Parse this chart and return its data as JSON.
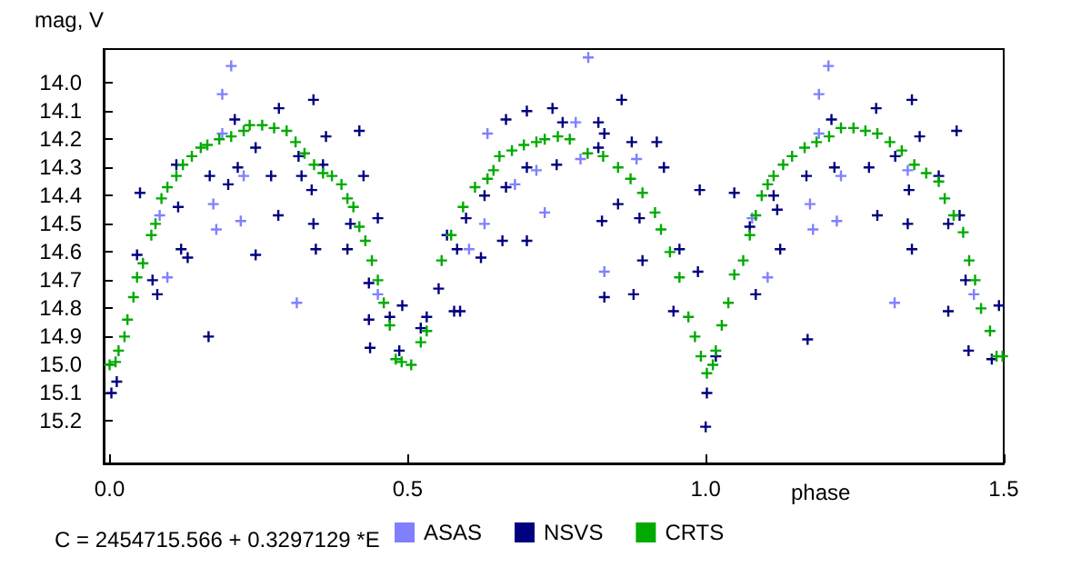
{
  "chart_data": {
    "type": "scatter",
    "xlabel": "phase",
    "ylabel": "mag, V",
    "xlim": [
      -0.01,
      1.5
    ],
    "ylim": [
      15.35,
      13.88
    ],
    "xticks": [
      {
        "value": 0,
        "label": "0.0"
      },
      {
        "value": 0.5,
        "label": "0.5"
      },
      {
        "value": 1,
        "label": "1.0"
      },
      {
        "value": 1.5,
        "label": "1.5"
      }
    ],
    "yticks": [
      {
        "value": 14,
        "label": "14.0"
      },
      14.1,
      14.2,
      14.3,
      14.4,
      14.5,
      14.6,
      14.7,
      14.8,
      14.9,
      {
        "value": 15,
        "label": "15.0"
      },
      15.1,
      15.2
    ],
    "grid": false,
    "legend": "bottom",
    "marker": "cross",
    "annotations": [
      "C = 2454715.566 + 0.3297129 *E"
    ],
    "series": [
      {
        "name": "ASAS",
        "color": "#8080ff",
        "x": [
          0.204,
          0.189,
          0.189,
          0.225,
          0.174,
          0.179,
          0.22,
          0.084,
          0.097,
          0.314,
          0.45,
          0.634,
          0.603,
          0.629,
          0.68,
          0.716,
          0.73,
          0.803,
          0.782,
          0.79,
          0.83,
          0.884,
          1.078,
          1.104,
          1.175,
          1.18,
          1.19,
          1.206,
          1.19,
          1.227,
          1.22,
          1.317,
          1.339,
          1.45
        ],
        "values": [
          13.94,
          14.04,
          14.18,
          14.33,
          14.43,
          14.52,
          14.49,
          14.47,
          14.69,
          14.78,
          14.75,
          14.18,
          14.59,
          14.5,
          14.36,
          14.31,
          14.46,
          13.91,
          14.14,
          14.27,
          14.67,
          14.27,
          14.48,
          14.69,
          14.43,
          14.52,
          14.04,
          13.94,
          14.18,
          14.33,
          14.49,
          14.78,
          14.31,
          14.75
        ]
      },
      {
        "name": "NSVS",
        "color": "#000080",
        "x": [
          0.003,
          0.012,
          0.051,
          0.046,
          0.072,
          0.08,
          0.112,
          0.115,
          0.12,
          0.131,
          0.166,
          0.168,
          0.199,
          0.21,
          0.215,
          0.245,
          0.245,
          0.271,
          0.284,
          0.283,
          0.317,
          0.322,
          0.339,
          0.342,
          0.342,
          0.346,
          0.363,
          0.358,
          0.399,
          0.404,
          0.419,
          0.426,
          0.435,
          0.437,
          0.435,
          0.45,
          0.47,
          0.486,
          0.491,
          0.522,
          0.532,
          0.552,
          0.566,
          0.578,
          0.583,
          0.588,
          0.598,
          0.623,
          0.629,
          0.659,
          0.665,
          0.665,
          0.7,
          0.7,
          0.7,
          0.743,
          0.75,
          0.76,
          0.82,
          0.82,
          0.83,
          0.83,
          0.826,
          0.853,
          0.859,
          0.876,
          0.879,
          0.889,
          0.894,
          0.918,
          0.93,
          0.946,
          0.956,
          0.99,
          0.987,
          1.002,
          1.0,
          1.017,
          1.048,
          1.074,
          1.084,
          1.114,
          1.12,
          1.125,
          1.169,
          1.171,
          1.211,
          1.216,
          1.286,
          1.274,
          1.288,
          1.318,
          1.339,
          1.341,
          1.346,
          1.346,
          1.359,
          1.391,
          1.407,
          1.407,
          1.421,
          1.426,
          1.436,
          1.441,
          1.48,
          1.492
        ],
        "values": [
          15.1,
          15.06,
          14.39,
          14.61,
          14.7,
          14.75,
          14.29,
          14.44,
          14.59,
          14.62,
          14.9,
          14.33,
          14.36,
          14.13,
          14.3,
          14.23,
          14.61,
          14.33,
          14.09,
          14.47,
          14.26,
          14.33,
          14.38,
          14.06,
          14.5,
          14.59,
          14.19,
          14.29,
          14.59,
          14.5,
          14.17,
          14.33,
          14.84,
          14.94,
          14.71,
          14.48,
          14.83,
          14.95,
          14.79,
          14.87,
          14.83,
          14.73,
          14.54,
          14.81,
          14.59,
          14.81,
          14.48,
          14.62,
          14.4,
          14.56,
          14.13,
          14.37,
          14.1,
          14.3,
          14.56,
          14.09,
          14.29,
          14.14,
          14.14,
          14.23,
          14.18,
          14.76,
          14.49,
          14.43,
          14.06,
          14.21,
          14.75,
          14.48,
          14.63,
          14.21,
          14.3,
          14.81,
          14.59,
          14.38,
          14.67,
          15.1,
          15.22,
          14.97,
          14.39,
          14.51,
          14.75,
          14.4,
          14.45,
          14.59,
          14.33,
          14.91,
          14.13,
          14.3,
          14.09,
          14.3,
          14.47,
          14.26,
          14.5,
          14.38,
          14.59,
          14.06,
          14.19,
          14.33,
          14.5,
          14.81,
          14.17,
          14.47,
          14.7,
          14.95,
          14.98,
          14.79
        ]
      },
      {
        "name": "CRTS",
        "color": "#00aa00",
        "x": [
          0,
          0.01,
          0.015,
          0.025,
          0.03,
          0.04,
          0.046,
          0.056,
          0.07,
          0.077,
          0.087,
          0.097,
          0.112,
          0.123,
          0.138,
          0.153,
          0.164,
          0.184,
          0.204,
          0.225,
          0.235,
          0.256,
          0.276,
          0.297,
          0.312,
          0.327,
          0.343,
          0.358,
          0.373,
          0.389,
          0.399,
          0.409,
          0.419,
          0.429,
          0.44,
          0.45,
          0.46,
          0.47,
          0.48,
          0.49,
          0.506,
          0.522,
          0.532,
          0.557,
          0.573,
          0.593,
          0.613,
          0.634,
          0.644,
          0.654,
          0.675,
          0.695,
          0.716,
          0.73,
          0.752,
          0.772,
          0.802,
          0.828,
          0.853,
          0.874,
          0.894,
          0.915,
          0.925,
          0.94,
          0.956,
          0.971,
          0.982,
          0.992,
          1.002,
          1.012,
          1.017,
          1.027,
          1.038,
          1.048,
          1.063,
          1.074,
          1.084,
          1.094,
          1.104,
          1.114,
          1.13,
          1.145,
          1.166,
          1.186,
          1.207,
          1.227,
          1.248,
          1.268,
          1.288,
          1.309,
          1.329,
          1.35,
          1.37,
          1.391,
          1.401,
          1.416,
          1.432,
          1.442,
          1.452,
          1.462,
          1.477,
          1.488,
          1.498
        ],
        "values": [
          15.0,
          14.99,
          14.95,
          14.9,
          14.84,
          14.76,
          14.69,
          14.64,
          14.54,
          14.5,
          14.41,
          14.37,
          14.33,
          14.29,
          14.26,
          14.23,
          14.22,
          14.2,
          14.19,
          14.17,
          14.15,
          14.15,
          14.16,
          14.17,
          14.21,
          14.25,
          14.29,
          14.32,
          14.33,
          14.36,
          14.41,
          14.44,
          14.51,
          14.56,
          14.63,
          14.7,
          14.78,
          14.86,
          14.98,
          14.99,
          15.0,
          14.92,
          14.88,
          14.63,
          14.54,
          14.44,
          14.37,
          14.34,
          14.31,
          14.26,
          14.24,
          14.22,
          14.21,
          14.2,
          14.19,
          14.2,
          14.25,
          14.26,
          14.3,
          14.34,
          14.39,
          14.46,
          14.52,
          14.6,
          14.69,
          14.83,
          14.9,
          14.97,
          15.03,
          15.0,
          14.95,
          14.86,
          14.78,
          14.68,
          14.63,
          14.54,
          14.47,
          14.4,
          14.36,
          14.33,
          14.29,
          14.26,
          14.23,
          14.21,
          14.19,
          14.16,
          14.16,
          14.17,
          14.18,
          14.21,
          14.24,
          14.29,
          14.32,
          14.35,
          14.41,
          14.47,
          14.53,
          14.63,
          14.7,
          14.8,
          14.88,
          14.97,
          14.97
        ]
      }
    ]
  }
}
